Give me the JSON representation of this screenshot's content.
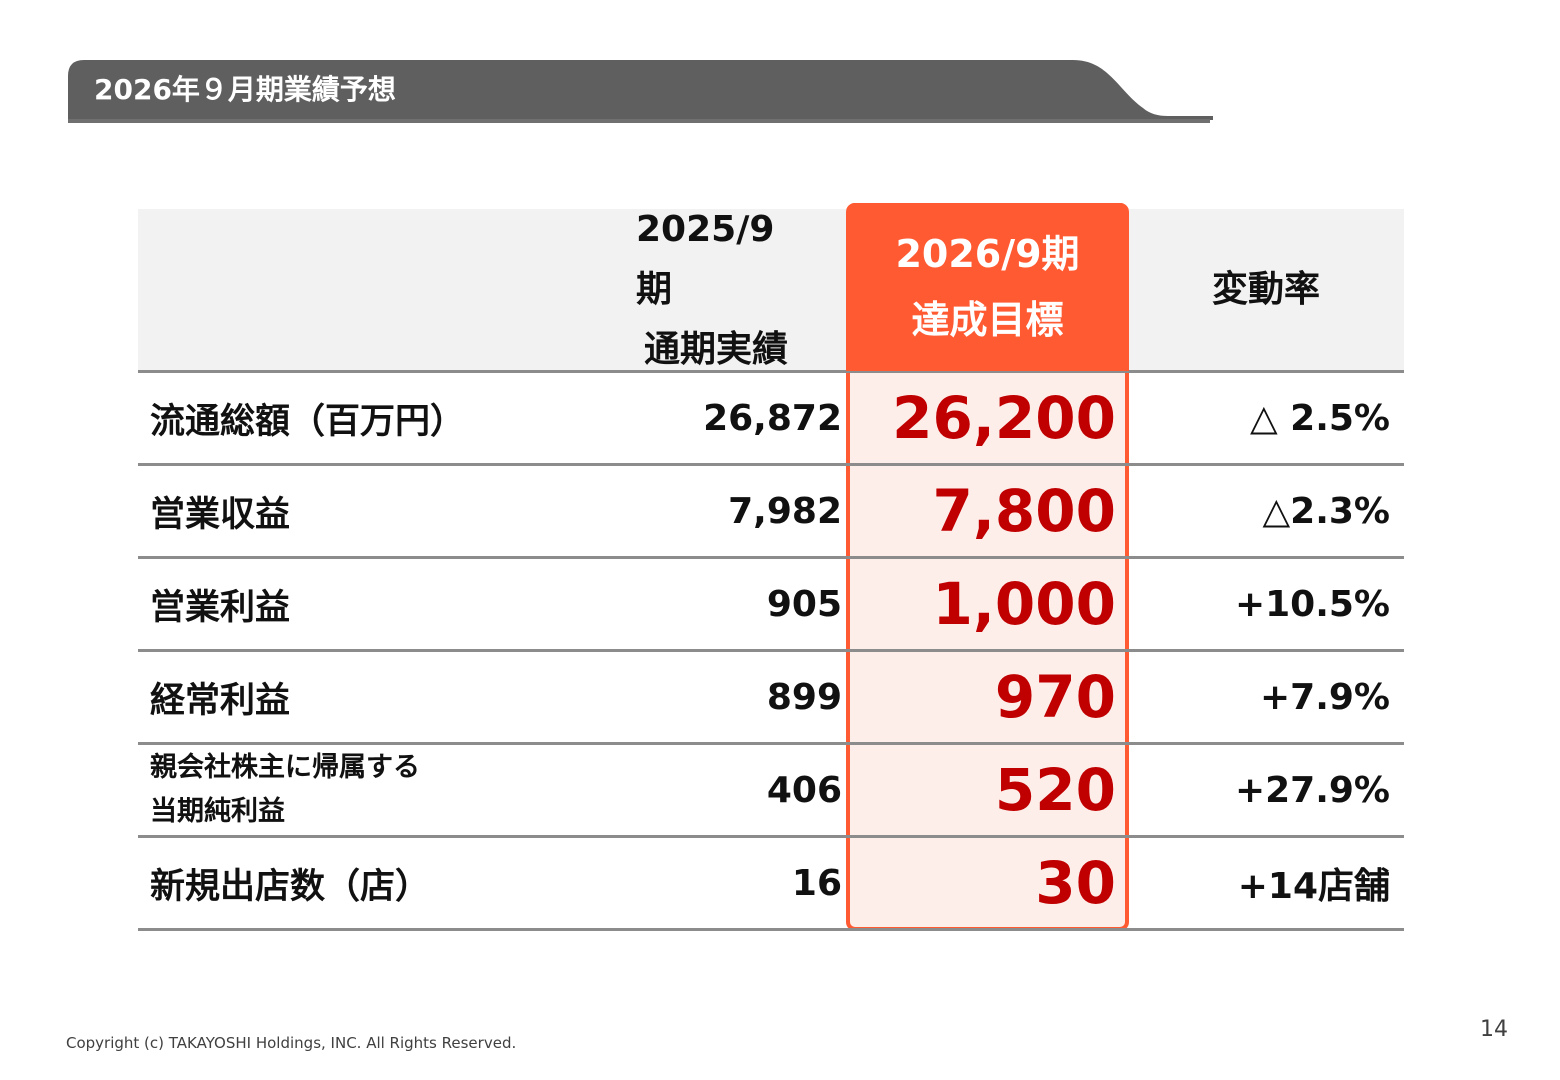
{
  "header": {
    "title": "2026年９月期業績予想"
  },
  "table": {
    "columns": {
      "prev": {
        "line1": "2025/9期",
        "line2": "通期実績"
      },
      "target": {
        "line1": "2026/9期",
        "line2": "達成目標"
      },
      "rate": "変動率"
    },
    "rows": [
      {
        "label": "流通総額（百万円）",
        "prev": "26,872",
        "target": "26,200",
        "rate": "△ 2.5%"
      },
      {
        "label": "営業収益",
        "prev": "7,982",
        "target": "7,800",
        "rate": "△2.3%"
      },
      {
        "label": "営業利益",
        "prev": "905",
        "target": "1,000",
        "rate": "+10.5%"
      },
      {
        "label": "経常利益",
        "prev": "899",
        "target": "970",
        "rate": "+7.9%"
      },
      {
        "label_line1": "親会社株主に帰属する",
        "label_line2": "当期純利益",
        "prev": "406",
        "target": "520",
        "rate": "+27.9%"
      },
      {
        "label": "新規出店数（店）",
        "prev": "16",
        "target": "30",
        "rate": "+14店舗"
      }
    ]
  },
  "footer": {
    "copyright": "Copyright (c) TAKAYOSHI Holdings, INC.  All Rights Reserved.",
    "page_number": "14"
  },
  "colors": {
    "banner": "#5f5f5f",
    "accent": "#ff5a32",
    "target_text": "#c00000",
    "header_bg": "#f2f2f2",
    "highlight_bg": "#fdeeea"
  }
}
